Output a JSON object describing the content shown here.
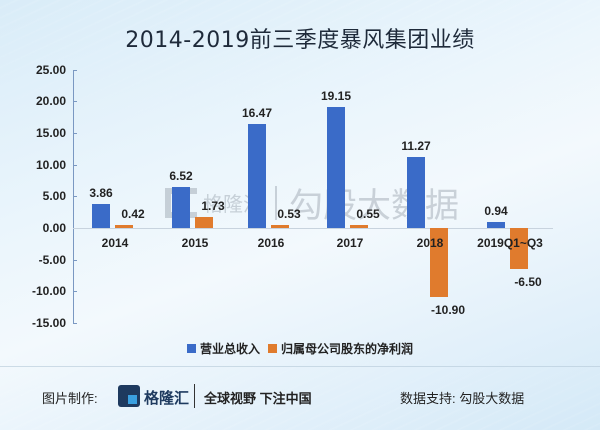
{
  "title": "2014-2019前三季度暴风集团业绩",
  "watermark": {
    "brand": "格隆汇",
    "text": "勾股大数据"
  },
  "legend": [
    {
      "label": "营业总收入",
      "color": "#3a6bc8"
    },
    {
      "label": "归属母公司股东的净利润",
      "color": "#e07b2d"
    }
  ],
  "footer": {
    "credit_label": "图片制作:",
    "brand": "格隆汇",
    "slogan": "全球视野 下注中国",
    "source": "数据支持:  勾股大数据"
  },
  "y_ticks": [
    "25.00",
    "20.00",
    "15.00",
    "10.00",
    "5.00",
    "0.00",
    "-5.00",
    "-10.00",
    "-15.00"
  ],
  "value_labels": {
    "rev": [
      "3.86",
      "6.52",
      "16.47",
      "19.15",
      "11.27",
      "0.94"
    ],
    "np": [
      "0.42",
      "1.73",
      "0.53",
      "0.55",
      "-10.90",
      "-6.50"
    ]
  },
  "chart_data": {
    "type": "bar",
    "title": "2014-2019前三季度暴风集团业绩",
    "categories": [
      "2014",
      "2015",
      "2016",
      "2017",
      "2018",
      "2019Q1~Q3"
    ],
    "series": [
      {
        "name": "营业总收入",
        "color": "#3a6bc8",
        "values": [
          3.86,
          6.52,
          16.47,
          19.15,
          11.27,
          0.94
        ]
      },
      {
        "name": "归属母公司股东的净利润",
        "color": "#e07b2d",
        "values": [
          0.42,
          1.73,
          0.53,
          0.55,
          -10.9,
          -6.5
        ]
      }
    ],
    "xlabel": "",
    "ylabel": "",
    "ylim": [
      -15,
      25
    ],
    "yticks": [
      25,
      20,
      15,
      10,
      5,
      0,
      -5,
      -10,
      -15
    ],
    "grid": false,
    "legend_position": "bottom",
    "data_labels": true
  }
}
